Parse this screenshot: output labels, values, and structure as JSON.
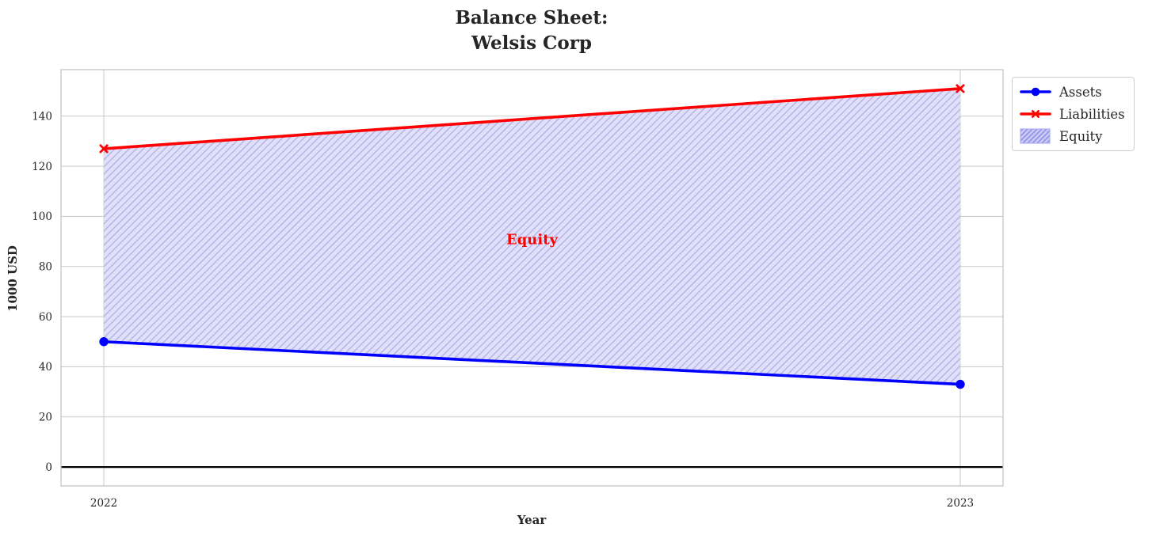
{
  "title": "Balance Sheet:\nWelsis Corp",
  "chart_data": {
    "type": "line",
    "x": [
      2022,
      2023
    ],
    "series": [
      {
        "name": "Assets",
        "values": [
          50,
          33
        ],
        "color": "#0000ff",
        "marker": "circle"
      },
      {
        "name": "Liabilities",
        "values": [
          127,
          151
        ],
        "color": "#ff0000",
        "marker": "x"
      }
    ],
    "fill_between": {
      "name": "Equity",
      "between": [
        "Assets",
        "Liabilities"
      ],
      "fill_color": "#e0e0f8",
      "hatch": "//",
      "hatch_color": "#b7b7ec",
      "legend_fill_color": "#c9c9f4",
      "legend_hatch_color": "#8c8ce8",
      "legend_edge_color": "#adadf2"
    },
    "annotation": {
      "text": "Equity",
      "x": 2022.5,
      "y": 90.6,
      "color": "#ff0000"
    },
    "title": "Balance Sheet:\nWelsis Corp",
    "xlabel": "Year",
    "ylabel": "1000 USD",
    "xticks": [
      2022,
      2023
    ],
    "yticks": [
      0,
      20,
      40,
      60,
      80,
      100,
      120,
      140
    ],
    "xlim": [
      2021.95,
      2023.05
    ],
    "ylim": [
      -7.55,
      158.55
    ],
    "grid": true,
    "grid_color": "#cccccc",
    "spine_color": "#c6c6c6",
    "tick_color": "#262626",
    "zero_line": {
      "y": 0,
      "color": "#000000"
    },
    "legend_position": "upper-right-outside"
  }
}
